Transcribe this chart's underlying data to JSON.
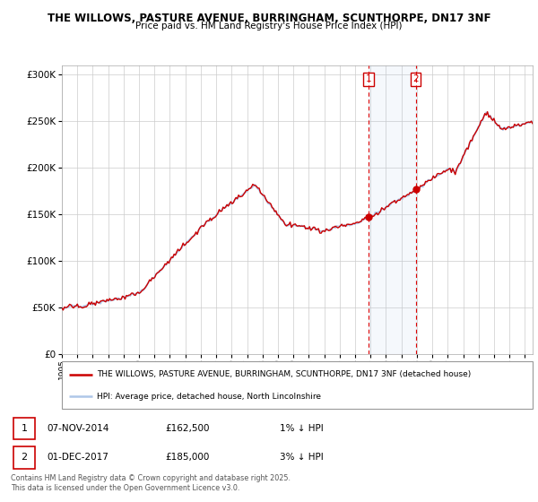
{
  "title": "THE WILLOWS, PASTURE AVENUE, BURRINGHAM, SCUNTHORPE, DN17 3NF",
  "subtitle": "Price paid vs. HM Land Registry's House Price Index (HPI)",
  "legend_line1": "THE WILLOWS, PASTURE AVENUE, BURRINGHAM, SCUNTHORPE, DN17 3NF (detached house)",
  "legend_line2": "HPI: Average price, detached house, North Lincolnshire",
  "sale1_date": "07-NOV-2014",
  "sale1_price": "£162,500",
  "sale1_hpi": "1% ↓ HPI",
  "sale2_date": "01-DEC-2017",
  "sale2_price": "£185,000",
  "sale2_hpi": "3% ↓ HPI",
  "footnote": "Contains HM Land Registry data © Crown copyright and database right 2025.\nThis data is licensed under the Open Government Licence v3.0.",
  "hpi_color": "#aec6e8",
  "price_color": "#cc0000",
  "sale1_x": 2014.85,
  "sale2_x": 2017.92,
  "sale1_y": 162500,
  "sale2_y": 185000,
  "ylim": [
    0,
    310000
  ],
  "xlim_start": 1995,
  "xlim_end": 2025.5,
  "yticks": [
    0,
    50000,
    100000,
    150000,
    200000,
    250000,
    300000
  ],
  "ytick_labels": [
    "£0",
    "£50K",
    "£100K",
    "£150K",
    "£200K",
    "£250K",
    "£300K"
  ]
}
